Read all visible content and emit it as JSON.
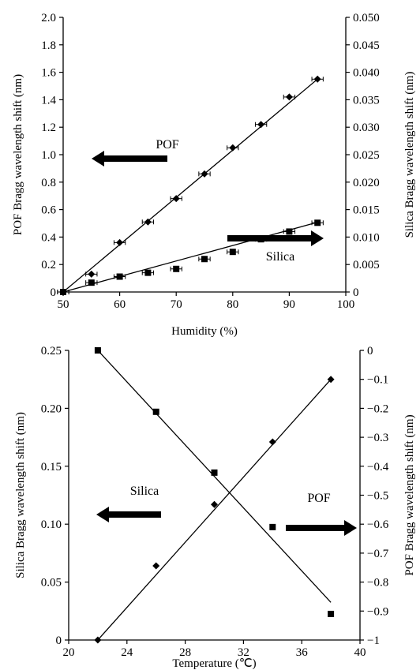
{
  "chart_data": [
    {
      "type": "scatter",
      "xlabel": "Humidity (%)",
      "ylabel_left": "POF Bragg wavelength shift (nm)",
      "ylabel_right": "Silica Bragg wavelength shift (nm)",
      "xlim": [
        50,
        100
      ],
      "ylim_left": [
        0,
        2.0
      ],
      "ylim_right": [
        0,
        0.05
      ],
      "x_ticks": [
        "50",
        "60",
        "70",
        "80",
        "90",
        "100"
      ],
      "y_left_ticks": [
        "0",
        "0.2",
        "0.4",
        "0.6",
        "0.8",
        "1.0",
        "1.2",
        "1.4",
        "1.6",
        "1.8",
        "2.0"
      ],
      "y_right_ticks": [
        "0",
        "0.005",
        "0.010",
        "0.015",
        "0.020",
        "0.025",
        "0.030",
        "0.035",
        "0.040",
        "0.045",
        "0.050"
      ],
      "series": [
        {
          "name": "POF",
          "axis": "left",
          "marker": "diamond",
          "x": [
            50,
            55,
            60,
            65,
            70,
            75,
            80,
            85,
            90,
            95
          ],
          "values": [
            0,
            0.13,
            0.36,
            0.51,
            0.68,
            0.86,
            1.05,
            1.22,
            1.42,
            1.55
          ],
          "x_error": 1,
          "fit_line": [
            [
              50,
              0
            ],
            [
              95,
              1.55
            ]
          ]
        },
        {
          "name": "Silica",
          "axis": "right",
          "marker": "square",
          "x": [
            50,
            55,
            60,
            65,
            70,
            75,
            80,
            85,
            90,
            95
          ],
          "values": [
            0,
            0.0017,
            0.0028,
            0.0035,
            0.0042,
            0.006,
            0.0073,
            0.0096,
            0.011,
            0.0126
          ],
          "x_error": 1,
          "fit_line": [
            [
              50,
              0
            ],
            [
              95,
              0.0127
            ]
          ]
        }
      ],
      "annotations": [
        {
          "text": "POF",
          "arrow": "left"
        },
        {
          "text": "Silica",
          "arrow": "right"
        }
      ],
      "grid": false
    },
    {
      "type": "scatter",
      "xlabel": "Temperature (℃)",
      "ylabel_left": "Silica Bragg wavelength shift (nm)",
      "ylabel_right": "POF Bragg wavelength shift (nm)",
      "xlim": [
        20,
        40
      ],
      "ylim_left": [
        0,
        0.25
      ],
      "ylim_right": [
        -1,
        0
      ],
      "x_ticks": [
        "20",
        "24",
        "28",
        "32",
        "36",
        "40"
      ],
      "y_left_ticks": [
        "0",
        "0.05",
        "0.10",
        "0.15",
        "0.20",
        "0.25"
      ],
      "y_right_ticks": [
        "−1",
        "−0.9",
        "−0.8",
        "−0.7",
        "−0.6",
        "−0.5",
        "−0.4",
        "−0.3",
        "−0.2",
        "−0.1",
        "0"
      ],
      "series": [
        {
          "name": "Silica",
          "axis": "left",
          "marker": "diamond",
          "x": [
            22,
            26,
            30,
            34,
            38
          ],
          "values": [
            0,
            0.064,
            0.117,
            0.171,
            0.225
          ],
          "fit_line": [
            [
              22,
              0
            ],
            [
              38,
              0.225
            ]
          ]
        },
        {
          "name": "POF",
          "axis": "right",
          "marker": "square",
          "x": [
            22,
            26,
            30,
            34,
            38
          ],
          "values": [
            0,
            -0.212,
            -0.422,
            -0.61,
            -0.91
          ],
          "fit_line": [
            [
              22,
              0
            ],
            [
              38,
              -0.87
            ]
          ]
        }
      ],
      "annotations": [
        {
          "text": "Silica",
          "arrow": "left"
        },
        {
          "text": "POF",
          "arrow": "right"
        }
      ],
      "grid": false
    }
  ]
}
